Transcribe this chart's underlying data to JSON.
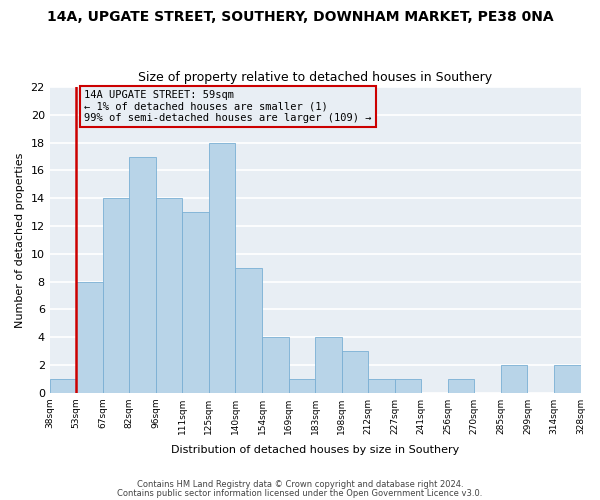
{
  "title": "14A, UPGATE STREET, SOUTHERY, DOWNHAM MARKET, PE38 0NA",
  "subtitle": "Size of property relative to detached houses in Southery",
  "xlabel": "Distribution of detached houses by size in Southery",
  "ylabel": "Number of detached properties",
  "bin_labels": [
    "38sqm",
    "53sqm",
    "67sqm",
    "82sqm",
    "96sqm",
    "111sqm",
    "125sqm",
    "140sqm",
    "154sqm",
    "169sqm",
    "183sqm",
    "198sqm",
    "212sqm",
    "227sqm",
    "241sqm",
    "256sqm",
    "270sqm",
    "285sqm",
    "299sqm",
    "314sqm",
    "328sqm"
  ],
  "bar_values": [
    1,
    8,
    14,
    17,
    14,
    13,
    18,
    9,
    4,
    1,
    4,
    3,
    1,
    1,
    0,
    1,
    0,
    2,
    0,
    2
  ],
  "bar_color": "#b8d4e8",
  "bar_edge_color": "#7aafd4",
  "vline_x_index": 1,
  "ylim": [
    0,
    22
  ],
  "yticks": [
    0,
    2,
    4,
    6,
    8,
    10,
    12,
    14,
    16,
    18,
    20,
    22
  ],
  "annotation_title": "14A UPGATE STREET: 59sqm",
  "annotation_line1": "← 1% of detached houses are smaller (1)",
  "annotation_line2": "99% of semi-detached houses are larger (109) →",
  "footer1": "Contains HM Land Registry data © Crown copyright and database right 2024.",
  "footer2": "Contains public sector information licensed under the Open Government Licence v3.0.",
  "vline_color": "#cc0000",
  "annotation_box_edge": "#cc0000",
  "figure_bg": "#ffffff",
  "plot_bg": "#e8eef4",
  "grid_color": "#ffffff",
  "title_fontsize": 10,
  "subtitle_fontsize": 9,
  "ylabel_fontsize": 8,
  "xlabel_fontsize": 8,
  "ytick_fontsize": 8,
  "xtick_fontsize": 6.5,
  "ann_fontsize": 7.5,
  "footer_fontsize": 6
}
